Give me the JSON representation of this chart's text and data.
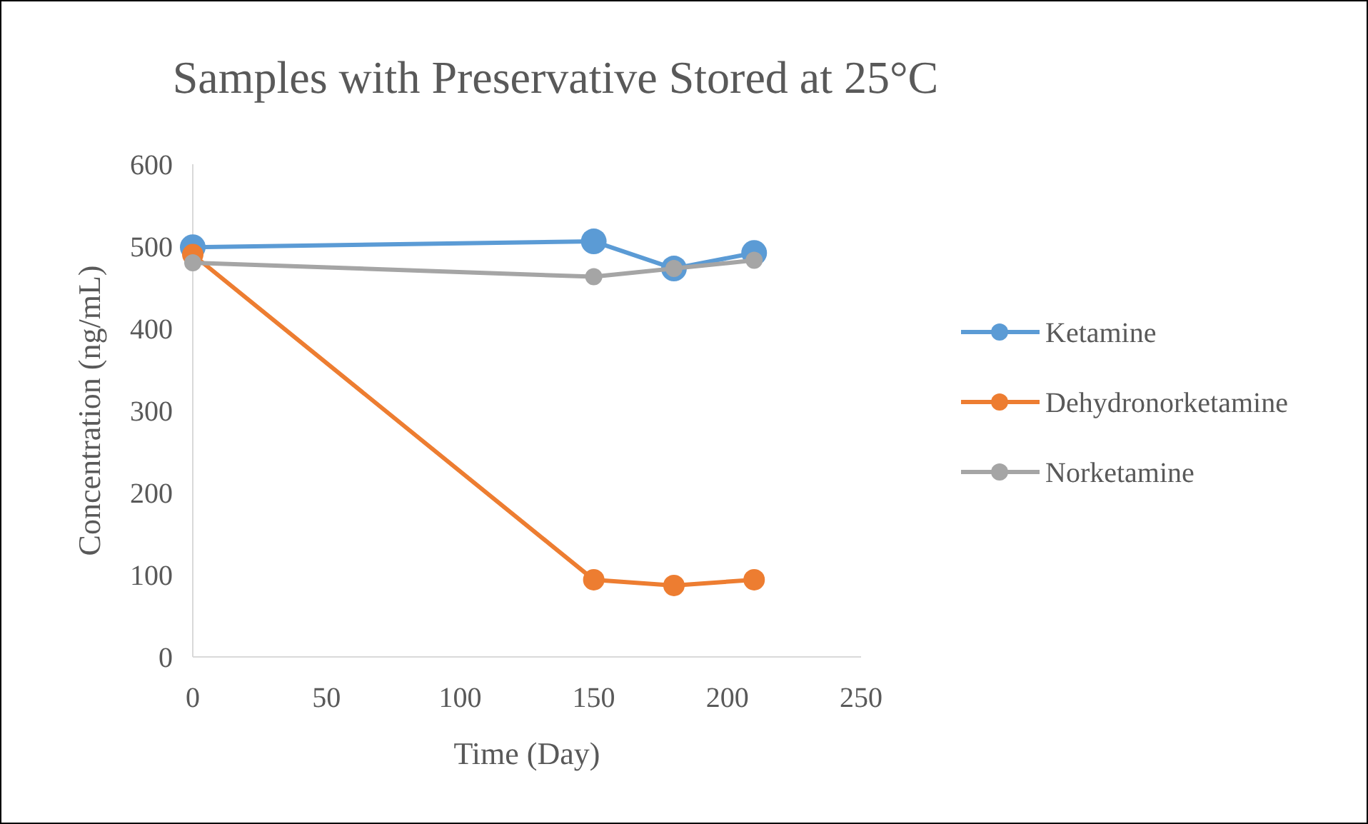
{
  "chart_data": {
    "type": "line",
    "title": "Samples with Preservative Stored at 25°C",
    "xlabel": "Time (Day)",
    "ylabel": "Concentration (ng/mL)",
    "x": [
      0,
      150,
      180,
      210
    ],
    "series": [
      {
        "name": "Ketamine",
        "color": "#5b9bd5",
        "values": [
          499,
          506,
          473,
          492
        ]
      },
      {
        "name": "Dehydronorketamine",
        "color": "#ed7d31",
        "values": [
          490,
          94,
          87,
          94
        ]
      },
      {
        "name": "Norketamine",
        "color": "#a5a5a5",
        "values": [
          480,
          463,
          473,
          483
        ]
      }
    ],
    "xlim": [
      0,
      250
    ],
    "xticks": [
      0,
      50,
      100,
      150,
      200,
      250
    ],
    "ylim": [
      0,
      600
    ],
    "yticks": [
      0,
      100,
      200,
      300,
      400,
      500,
      600
    ],
    "grid": false,
    "legend": "right",
    "marker": "circle",
    "line_style": "solid"
  }
}
